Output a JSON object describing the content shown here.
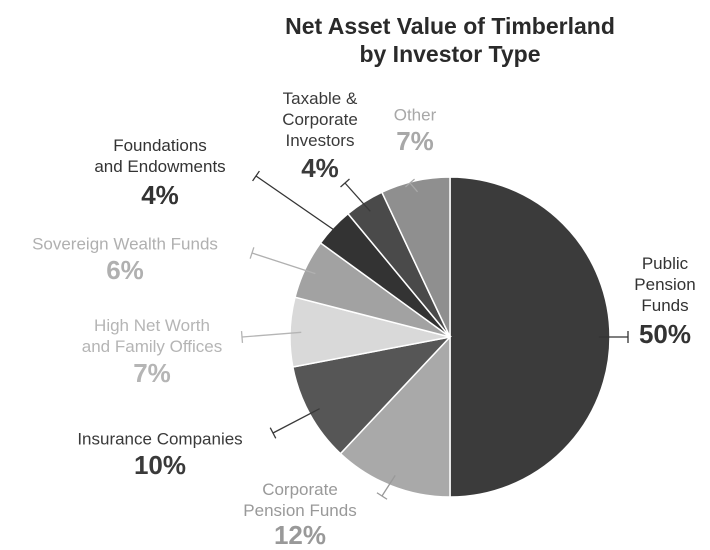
{
  "chart_data": {
    "type": "pie",
    "title": "Net Asset Value of Timberland\nby Investor Type",
    "categories": [
      "Public\nPension\nFunds",
      "Corporate\nPension Funds",
      "Insurance Companies",
      "High Net Worth\nand Family Offices",
      "Sovereign Wealth Funds",
      "Foundations\nand Endowments",
      "Taxable &\nCorporate\nInvestors",
      "Other"
    ],
    "values": [
      50,
      12,
      10,
      7,
      6,
      4,
      4,
      7
    ],
    "value_labels": [
      "50%",
      "12%",
      "10%",
      "7%",
      "6%",
      "4%",
      "4%",
      "7%"
    ],
    "colors": [
      "#3b3b3b",
      "#a9a9a9",
      "#565656",
      "#d9d9d9",
      "#a2a2a2",
      "#333333",
      "#4a4a4a",
      "#8f8f8f"
    ],
    "label_colors": [
      "#333333",
      "#999999",
      "#3a3a3a",
      "#b5b5b5",
      "#b0b0b0",
      "#333333",
      "#3a3a3a",
      "#a8a8a8"
    ]
  }
}
